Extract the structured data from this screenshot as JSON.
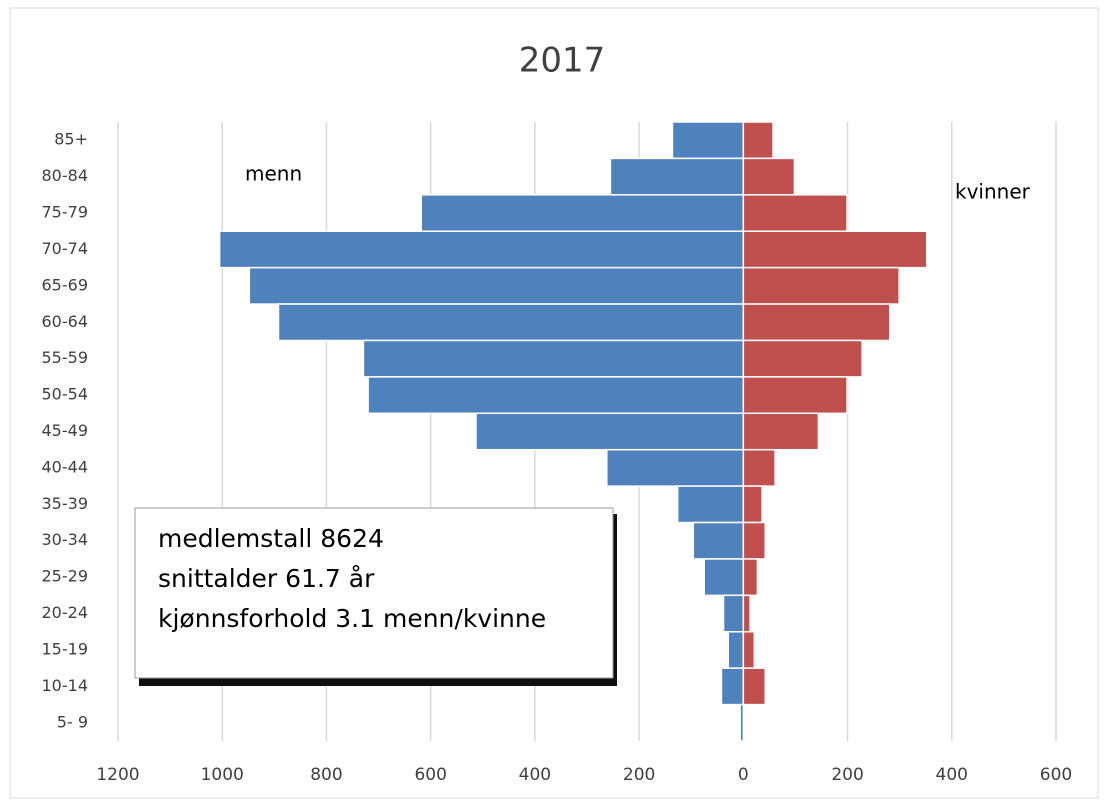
{
  "chart_data": {
    "type": "pyramid",
    "title": "2017",
    "categories": [
      "85+",
      "80-84",
      "75-79",
      "70-74",
      "65-69",
      "60-64",
      "55-59",
      "50-54",
      "45-49",
      "40-44",
      "35-39",
      "30-34",
      "25-29",
      "20-24",
      "15-19",
      "10-14",
      "5- 9"
    ],
    "series": [
      {
        "name": "menn",
        "color": "#4f81bd",
        "values": [
          -136,
          -255,
          -618,
          -1005,
          -948,
          -892,
          -729,
          -720,
          -513,
          -262,
          -126,
          -96,
          -75,
          -38,
          -29,
          -42,
          -6
        ]
      },
      {
        "name": "kvinner",
        "color": "#c0504d",
        "values": [
          57,
          98,
          199,
          352,
          299,
          281,
          228,
          199,
          144,
          61,
          36,
          42,
          27,
          13,
          21,
          42,
          0
        ]
      }
    ],
    "xlim": [
      -1200,
      600
    ],
    "xticks": [
      {
        "value": -1200,
        "label": "1200"
      },
      {
        "value": -1000,
        "label": "1000"
      },
      {
        "value": -800,
        "label": "800"
      },
      {
        "value": -600,
        "label": "600"
      },
      {
        "value": -400,
        "label": "400"
      },
      {
        "value": -200,
        "label": "200"
      },
      0,
      200,
      400,
      600
    ],
    "grid": true,
    "annotations": [
      "medlemstall 8624",
      "snittalder 61.7 år",
      "kjønnsforhold 3.1 menn/kvinne"
    ]
  }
}
